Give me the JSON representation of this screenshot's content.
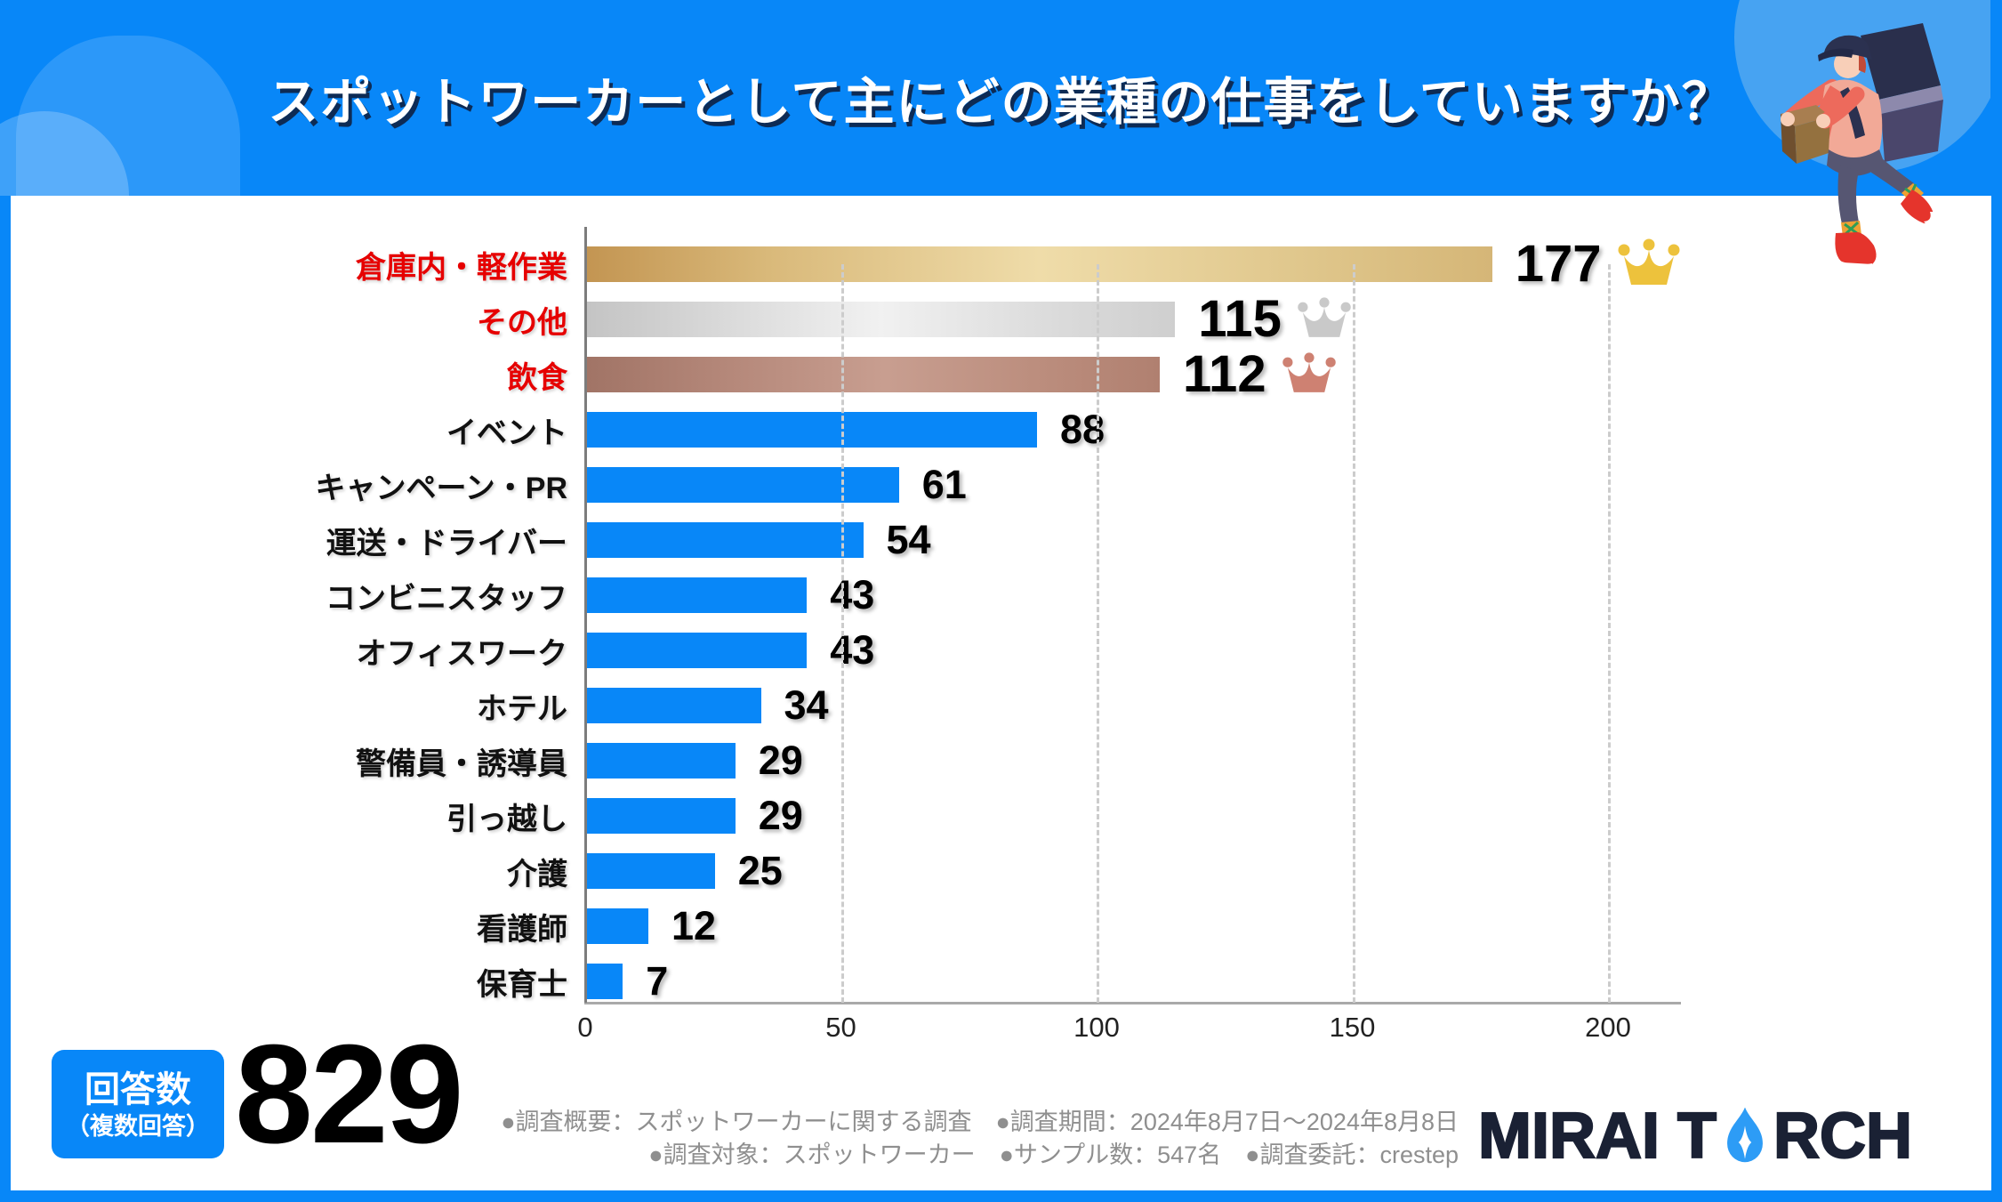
{
  "header": {
    "title": "スポットワーカーとして主にどの業種の仕事をしていますか？",
    "bg_color": "#0887F8"
  },
  "chart_data": {
    "type": "bar",
    "orientation": "horizontal",
    "title": "スポットワーカーとして主にどの業種の仕事をしていますか？",
    "categories": [
      "倉庫内・軽作業",
      "その他",
      "飲食",
      "イベント",
      "キャンペーン・PR",
      "運送・ドライバー",
      "コンビニスタッフ",
      "オフィスワーク",
      "ホテル",
      "警備員・誘導員",
      "引っ越し",
      "介護",
      "看護師",
      "保育士"
    ],
    "values": [
      177,
      115,
      112,
      88,
      61,
      54,
      43,
      43,
      34,
      29,
      29,
      25,
      12,
      7
    ],
    "xlim": [
      0,
      200
    ],
    "x_ticks": [
      0,
      50,
      100,
      150,
      200
    ],
    "grid": "vertical-dashed",
    "bar_color": "#0887F8",
    "top3_label_color": "#E60000",
    "rank_bar_styles": [
      "gold-gradient",
      "silver-gradient",
      "bronze-gradient"
    ],
    "crown_colors": [
      "#EDC23C",
      "#C9C9C9",
      "#CE8172"
    ],
    "crown_icon_names": [
      "gold-crown-icon",
      "silver-crown-icon",
      "bronze-crown-icon"
    ]
  },
  "answer_box": {
    "label": "回答数",
    "sublabel": "（複数回答）",
    "value": "829"
  },
  "footer": {
    "note_line1": "●調査概要：スポットワーカーに関する調査　●調査期間：2024年8月7日～2024年8月8日",
    "note_line2": "●調査対象：スポットワーカー　●サンプル数：547名　●調査委託：crestep",
    "logo": {
      "full": "MIRAI TORCH",
      "part1": "MIRAI T",
      "part2": "RCH",
      "flame_color": "#2D9CF6",
      "text_color": "#1A2134"
    }
  }
}
